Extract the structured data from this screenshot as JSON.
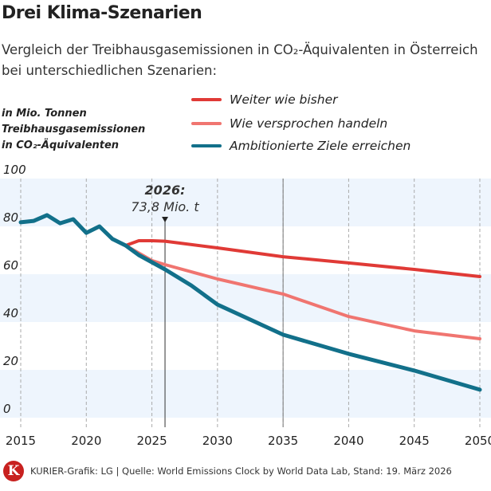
{
  "title": "Drei Klima-Szenarien",
  "subtitle": "Vergleich der Treibhausgasemissionen in CO₂-Äquivalenten in Österreich bei unterschiedlichen Szenarien:",
  "footer": "KURIER-Grafik: LG | Quelle: World Emissions Clock by World Data Lab, Stand: 19. März 2026",
  "logo": "K",
  "chart_data": {
    "type": "line",
    "ylabel": "in Mio. Tonnen Treibhausgasemissionen in CO₂-Äquivalenten",
    "ylim": [
      0,
      100
    ],
    "xlim": [
      2015,
      2050
    ],
    "yticks": [
      "0",
      "20",
      "40",
      "60",
      "80",
      "100"
    ],
    "xticks": [
      "2015",
      "2020",
      "2025",
      "2030",
      "2035",
      "2040",
      "2045",
      "2050"
    ],
    "legend": "top-right",
    "annotation": {
      "x": 2026,
      "y": 73.8,
      "line1": "2026:",
      "line2": "73,8 Mio. t"
    },
    "series": [
      {
        "name": "Weiter wie bisher",
        "color": "#e03a36",
        "points": [
          [
            2023,
            72
          ],
          [
            2024,
            74
          ],
          [
            2025,
            74
          ],
          [
            2026,
            73.8
          ],
          [
            2030,
            71
          ],
          [
            2035,
            67.3
          ],
          [
            2040,
            64.7
          ],
          [
            2045,
            62
          ],
          [
            2050,
            59
          ]
        ]
      },
      {
        "name": "Wie versprochen handeln",
        "color": "#f07570",
        "points": [
          [
            2023,
            72
          ],
          [
            2025,
            65.7
          ],
          [
            2026,
            64
          ],
          [
            2030,
            58
          ],
          [
            2035,
            51.7
          ],
          [
            2040,
            42.3
          ],
          [
            2045,
            36.3
          ],
          [
            2050,
            33
          ]
        ]
      },
      {
        "name": "Ambitionierte Ziele erreichen",
        "color": "#12708a",
        "points": [
          [
            2015,
            81.7
          ],
          [
            2016,
            82.3
          ],
          [
            2017,
            84.7
          ],
          [
            2018,
            81.3
          ],
          [
            2019,
            83
          ],
          [
            2020,
            77.3
          ],
          [
            2021,
            80
          ],
          [
            2022,
            74.7
          ],
          [
            2023,
            72
          ],
          [
            2024,
            68
          ],
          [
            2025,
            65
          ],
          [
            2026,
            62
          ],
          [
            2028,
            55.3
          ],
          [
            2030,
            47.3
          ],
          [
            2035,
            34.7
          ],
          [
            2040,
            26.7
          ],
          [
            2045,
            19.7
          ],
          [
            2050,
            11.7
          ]
        ]
      }
    ]
  }
}
